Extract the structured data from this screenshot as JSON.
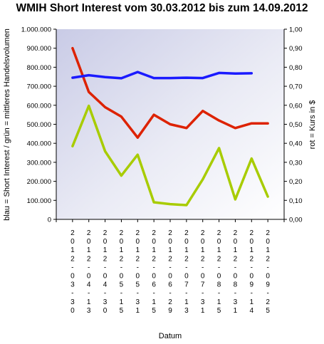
{
  "chart_data": {
    "type": "line",
    "title": "WMIH Short Interest vom 30.03.2012 bis zum 14.09.2012",
    "xlabel": "Datum",
    "ylabel_left": "blau = Short Interest / grün = mittleres Handelsvolumen",
    "ylabel_right": "rot = Kurs in $",
    "ylim_left": [
      0,
      1000000
    ],
    "ylim_right": [
      0,
      1
    ],
    "yticks_left": [
      "0",
      "100.000",
      "200.000",
      "300.000",
      "400.000",
      "500.000",
      "600.000",
      "700.000",
      "800.000",
      "900.000",
      "1.000.000"
    ],
    "yticks_right": [
      "0,00",
      "0,10",
      "0,20",
      "0,30",
      "0,40",
      "0,50",
      "0,60",
      "0,70",
      "0,80",
      "0,90",
      "1,00"
    ],
    "categories": [
      "2012-03-30",
      "2012-04-13",
      "2012-04-30",
      "2012-05-15",
      "2012-05-31",
      "2012-06-15",
      "2012-06-29",
      "2012-07-13",
      "2012-07-31",
      "2012-08-15",
      "2012-08-31",
      "2012-09-14",
      "2012-09-25"
    ],
    "grid": false,
    "background": "gradient",
    "series": [
      {
        "color": "#1a1aff",
        "axis": "left",
        "values": [
          745000,
          758000,
          748000,
          742000,
          775000,
          743000,
          743000,
          745000,
          743000,
          770000,
          767000,
          768000,
          null
        ]
      },
      {
        "color": "#dd2200",
        "axis": "right",
        "values": [
          0.9,
          0.67,
          0.59,
          0.54,
          0.43,
          0.55,
          0.5,
          0.48,
          0.57,
          0.52,
          0.48,
          0.505,
          0.505
        ]
      },
      {
        "color": "#a8cc00",
        "axis": "left",
        "values": [
          385000,
          597000,
          358000,
          230000,
          340000,
          90000,
          80000,
          75000,
          210000,
          375000,
          105000,
          320000,
          120000
        ]
      }
    ]
  }
}
